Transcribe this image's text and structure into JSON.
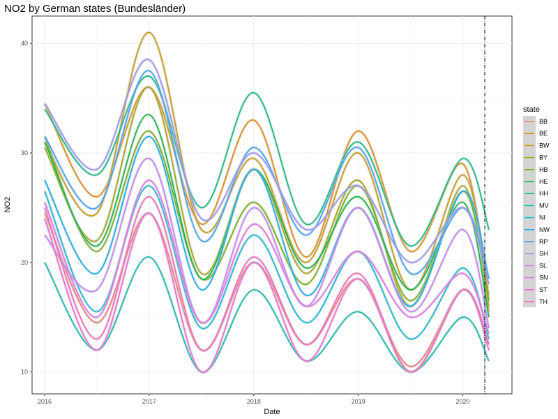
{
  "chart_data": {
    "type": "line",
    "title": "NO2 by German states (Bundesländer)",
    "xlabel": "Date",
    "ylabel": "NO2",
    "xlim": [
      2015.88,
      2020.47
    ],
    "ylim": [
      8.0,
      42.5
    ],
    "xticks": [
      2016,
      2017,
      2018,
      2019,
      2020
    ],
    "xtick_labels": [
      "2016",
      "2017",
      "2018",
      "2019",
      "2020"
    ],
    "yticks": [
      10,
      20,
      30,
      40
    ],
    "ytick_labels": [
      "10",
      "20",
      "30",
      "40"
    ],
    "vline_x": 2020.21,
    "grid": true,
    "legend_title": "state",
    "legend_position": "right",
    "x": [
      2016.0,
      2016.5,
      2017.0,
      2017.5,
      2018.0,
      2018.5,
      2019.0,
      2019.5,
      2020.0,
      2020.25
    ],
    "series": [
      {
        "name": "BB",
        "color": "#F8766D",
        "values": [
          24.5,
          14.5,
          24.5,
          12.0,
          20.0,
          12.5,
          18.5,
          10.5,
          17.5,
          12.5
        ]
      },
      {
        "name": "BE",
        "color": "#E58700",
        "values": [
          34.5,
          26.0,
          36.0,
          23.5,
          33.0,
          20.5,
          32.0,
          21.0,
          29.0,
          16.0
        ]
      },
      {
        "name": "BW",
        "color": "#C99800",
        "values": [
          31.0,
          24.5,
          41.0,
          23.0,
          29.5,
          20.0,
          30.0,
          17.5,
          28.0,
          17.0
        ]
      },
      {
        "name": "BY",
        "color": "#A3A500",
        "values": [
          30.5,
          22.0,
          36.0,
          19.0,
          28.5,
          19.0,
          27.5,
          16.0,
          27.0,
          15.5
        ]
      },
      {
        "name": "HB",
        "color": "#6BB100",
        "values": [
          31.5,
          21.0,
          32.0,
          18.5,
          25.5,
          18.0,
          27.0,
          16.5,
          26.5,
          16.5
        ]
      },
      {
        "name": "HE",
        "color": "#00BA38",
        "values": [
          31.0,
          21.5,
          33.5,
          18.5,
          28.5,
          19.5,
          26.0,
          17.5,
          25.5,
          15.0
        ]
      },
      {
        "name": "HH",
        "color": "#00BF7D",
        "values": [
          34.0,
          28.0,
          37.0,
          25.0,
          35.5,
          23.5,
          31.0,
          21.5,
          29.5,
          23.0
        ]
      },
      {
        "name": "MV",
        "color": "#00C0AF",
        "values": [
          20.0,
          12.0,
          20.5,
          10.0,
          17.5,
          11.0,
          15.5,
          10.0,
          15.0,
          11.0
        ]
      },
      {
        "name": "NI",
        "color": "#00BCD8",
        "values": [
          26.5,
          15.5,
          27.0,
          14.0,
          22.5,
          14.5,
          21.0,
          13.0,
          19.5,
          13.0
        ]
      },
      {
        "name": "NW",
        "color": "#00B0F6",
        "values": [
          27.5,
          19.0,
          31.5,
          17.5,
          28.5,
          17.0,
          25.0,
          16.0,
          26.5,
          18.5
        ]
      },
      {
        "name": "RP",
        "color": "#35A2FF",
        "values": [
          31.5,
          25.0,
          37.5,
          22.0,
          30.5,
          22.5,
          30.5,
          19.0,
          25.0,
          18.5
        ]
      },
      {
        "name": "SH",
        "color": "#9590FF",
        "values": [
          34.5,
          28.5,
          38.5,
          24.0,
          30.0,
          23.0,
          27.0,
          20.0,
          25.0,
          18.0
        ]
      },
      {
        "name": "SL",
        "color": "#C77CFF",
        "values": [
          22.5,
          17.5,
          29.5,
          14.5,
          25.0,
          16.0,
          25.0,
          15.5,
          23.0,
          14.0
        ]
      },
      {
        "name": "SN",
        "color": "#E76BF3",
        "values": [
          25.5,
          15.0,
          27.5,
          14.5,
          23.5,
          16.0,
          21.0,
          15.0,
          19.0,
          13.5
        ]
      },
      {
        "name": "ST",
        "color": "#FA62DB",
        "values": [
          24.0,
          12.0,
          24.5,
          10.0,
          20.0,
          11.0,
          18.5,
          10.0,
          17.5,
          12.0
        ]
      },
      {
        "name": "TH",
        "color": "#FF62BC",
        "values": [
          25.0,
          13.0,
          26.0,
          12.0,
          20.5,
          12.5,
          19.0,
          10.0,
          17.5,
          12.5
        ]
      }
    ]
  }
}
